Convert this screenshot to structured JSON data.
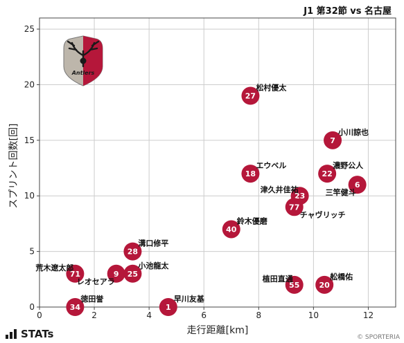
{
  "header": {
    "title": "J1 第32節 vs 名古屋"
  },
  "footer": {
    "brand": "STATs",
    "copyright": "© SPORTERIA"
  },
  "colors": {
    "marker": "#b5173a",
    "marker_text": "#ffffff",
    "grid": "#cccccc",
    "axis": "#444444"
  },
  "logo": {
    "icon": "kashima-antlers-crest",
    "text": "Antlers"
  },
  "chart_data": {
    "type": "scatter",
    "title": "J1 第32節 vs 名古屋",
    "xlabel": "走行距離[km]",
    "ylabel": "スプリント回数[回]",
    "xlim": [
      0,
      13
    ],
    "ylim": [
      0,
      26
    ],
    "xticks": [
      0,
      2,
      4,
      6,
      8,
      10,
      12
    ],
    "yticks": [
      0,
      5,
      10,
      15,
      20,
      25
    ],
    "grid": true,
    "points": [
      {
        "number": "27",
        "name": "松村優太",
        "x": 7.7,
        "y": 19,
        "label_pos": "upper-right"
      },
      {
        "number": "7",
        "name": "小川諒也",
        "x": 10.7,
        "y": 15,
        "label_pos": "upper-right"
      },
      {
        "number": "18",
        "name": "エウベル",
        "x": 7.7,
        "y": 12,
        "label_pos": "upper-right"
      },
      {
        "number": "22",
        "name": "濃野公人",
        "x": 10.5,
        "y": 12,
        "label_pos": "upper-right"
      },
      {
        "number": "6",
        "name": "三竿健斗",
        "x": 11.6,
        "y": 11,
        "label_pos": "lower-left"
      },
      {
        "number": "23",
        "name": "津久井佳祐",
        "x": 9.5,
        "y": 10,
        "label_pos": "upper-left"
      },
      {
        "number": "77",
        "name": "チャヴリッチ",
        "x": 9.3,
        "y": 9,
        "label_pos": "lower-right"
      },
      {
        "number": "40",
        "name": "鈴木優磨",
        "x": 7.0,
        "y": 7,
        "label_pos": "upper-right"
      },
      {
        "number": "28",
        "name": "溝口修平",
        "x": 3.4,
        "y": 5,
        "label_pos": "upper-right"
      },
      {
        "number": "71",
        "name": "荒木遼太郎",
        "x": 1.3,
        "y": 3,
        "label_pos": "upper-left"
      },
      {
        "number": "9",
        "name": "レオセアラ",
        "x": 2.8,
        "y": 3,
        "label_pos": "lower-left"
      },
      {
        "number": "25",
        "name": "小池龍太",
        "x": 3.4,
        "y": 3,
        "label_pos": "upper-right"
      },
      {
        "number": "55",
        "name": "植田直通",
        "x": 9.3,
        "y": 2,
        "label_pos": "upper-left"
      },
      {
        "number": "20",
        "name": "舩橋佑",
        "x": 10.4,
        "y": 2,
        "label_pos": "upper-right"
      },
      {
        "number": "34",
        "name": "徳田誉",
        "x": 1.3,
        "y": 0,
        "label_pos": "upper-right"
      },
      {
        "number": "1",
        "name": "早川友基",
        "x": 4.7,
        "y": 0,
        "label_pos": "upper-right"
      }
    ]
  }
}
